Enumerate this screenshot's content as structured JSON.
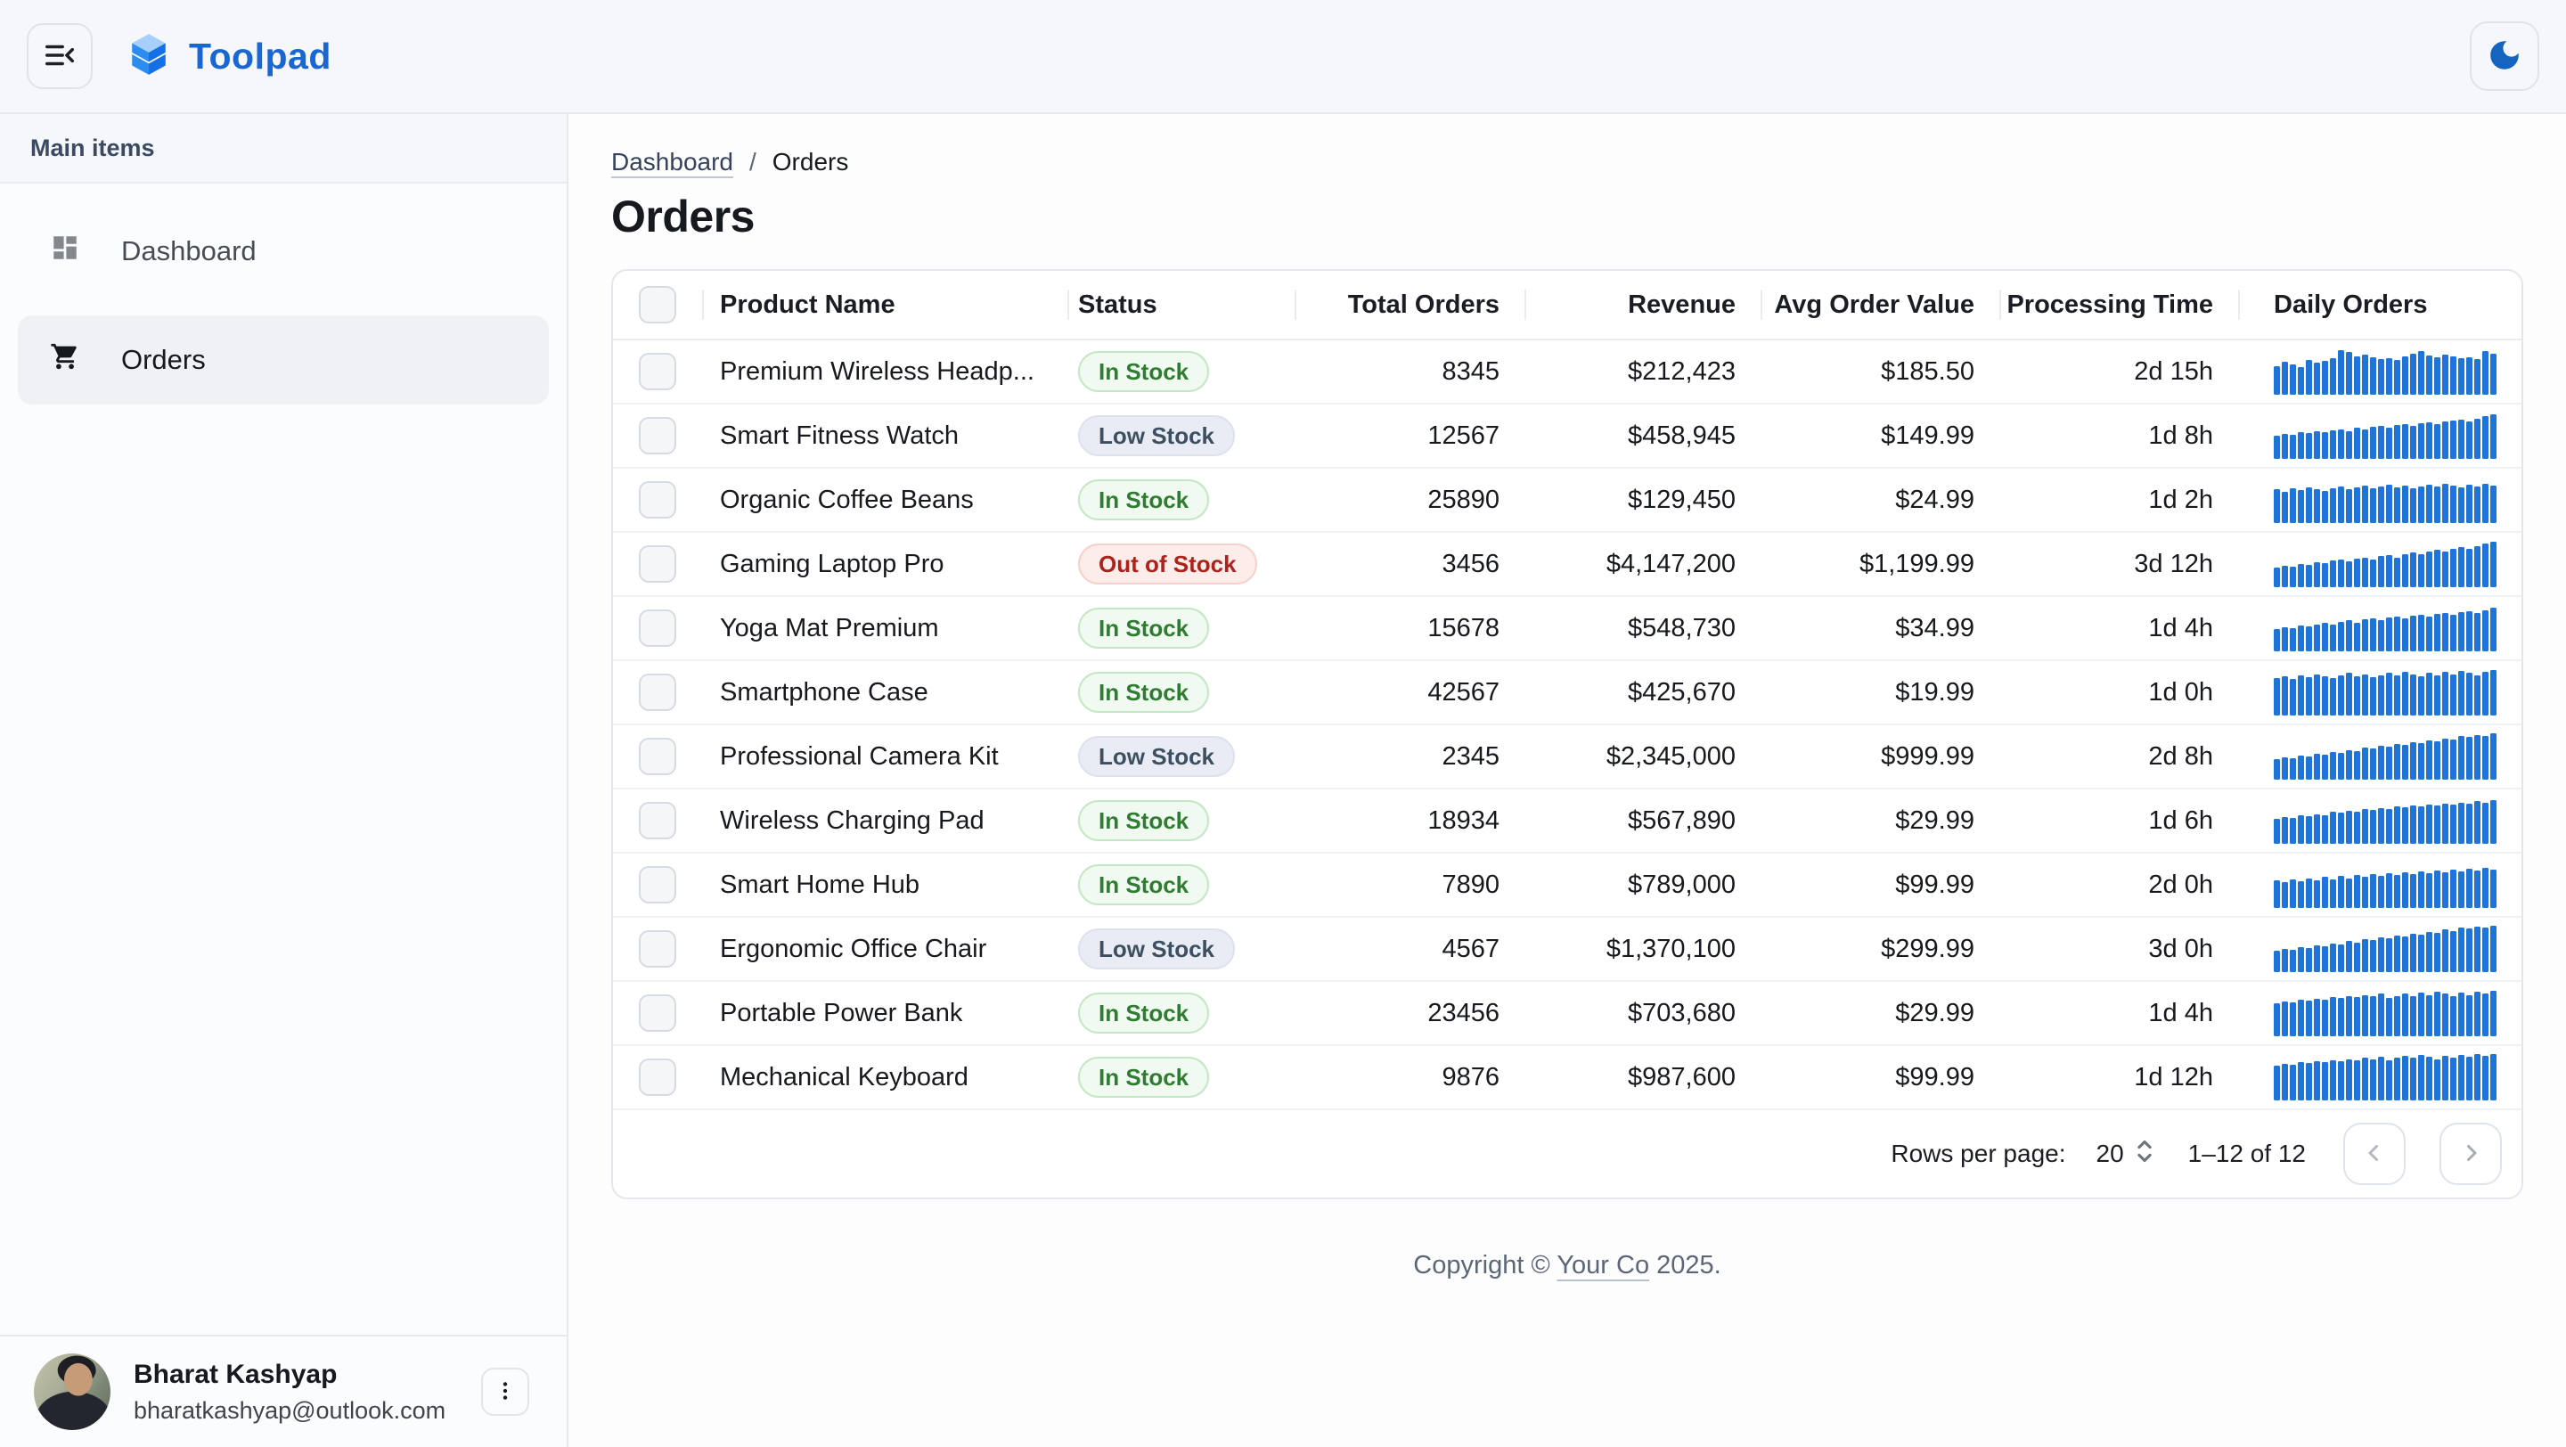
{
  "topbar": {
    "app_name": "Toolpad"
  },
  "sidebar": {
    "section_label": "Main items",
    "items": [
      {
        "label": "Dashboard",
        "icon": "dashboard-icon",
        "selected": false
      },
      {
        "label": "Orders",
        "icon": "cart-icon",
        "selected": true
      }
    ],
    "user": {
      "name": "Bharat Kashyap",
      "email": "bharatkashyap@outlook.com"
    }
  },
  "breadcrumb": {
    "link": "Dashboard",
    "separator": "/",
    "current": "Orders"
  },
  "page": {
    "title": "Orders"
  },
  "table": {
    "columns": [
      {
        "label": "",
        "name": "select-all"
      },
      {
        "label": "Product Name",
        "align": "left"
      },
      {
        "label": "Status",
        "align": "left"
      },
      {
        "label": "Total Orders",
        "align": "right"
      },
      {
        "label": "Revenue",
        "align": "right"
      },
      {
        "label": "Avg Order Value",
        "align": "right"
      },
      {
        "label": "Processing Time",
        "align": "right"
      },
      {
        "label": "Daily Orders",
        "align": "left"
      }
    ],
    "rows": [
      {
        "product": "Premium Wireless Headp...",
        "status": "In Stock",
        "status_variant": "success",
        "total_orders": "8345",
        "revenue": "$212,423",
        "avg_order_value": "$185.50",
        "processing_time": "2d 15h",
        "daily_orders": [
          60,
          68,
          63,
          58,
          72,
          66,
          70,
          75,
          92,
          88,
          80,
          84,
          78,
          74,
          76,
          72,
          80,
          85,
          90,
          82,
          78,
          84,
          80,
          76,
          78,
          74,
          90,
          86
        ]
      },
      {
        "product": "Smart Fitness Watch",
        "status": "Low Stock",
        "status_variant": "neutral",
        "total_orders": "12567",
        "revenue": "$458,945",
        "avg_order_value": "$149.99",
        "processing_time": "1d 8h",
        "daily_orders": [
          48,
          52,
          50,
          55,
          53,
          58,
          56,
          60,
          62,
          58,
          64,
          62,
          66,
          68,
          65,
          70,
          72,
          68,
          74,
          76,
          72,
          78,
          80,
          82,
          78,
          84,
          88,
          92
        ]
      },
      {
        "product": "Organic Coffee Beans",
        "status": "In Stock",
        "status_variant": "success",
        "total_orders": "25890",
        "revenue": "$129,450",
        "avg_order_value": "$24.99",
        "processing_time": "1d 2h",
        "daily_orders": [
          70,
          65,
          72,
          68,
          74,
          70,
          66,
          72,
          76,
          70,
          74,
          78,
          72,
          76,
          80,
          74,
          78,
          72,
          76,
          80,
          76,
          82,
          78,
          74,
          80,
          76,
          82,
          78
        ]
      },
      {
        "product": "Gaming Laptop Pro",
        "status": "Out of Stock",
        "status_variant": "error",
        "total_orders": "3456",
        "revenue": "$4,147,200",
        "avg_order_value": "$1,199.99",
        "processing_time": "3d 12h",
        "daily_orders": [
          40,
          44,
          42,
          48,
          46,
          52,
          50,
          55,
          58,
          54,
          60,
          62,
          58,
          64,
          66,
          62,
          68,
          72,
          68,
          74,
          78,
          74,
          80,
          84,
          80,
          86,
          90,
          95
        ]
      },
      {
        "product": "Yoga Mat Premium",
        "status": "In Stock",
        "status_variant": "success",
        "total_orders": "15678",
        "revenue": "$548,730",
        "avg_order_value": "$34.99",
        "processing_time": "1d 4h",
        "daily_orders": [
          46,
          50,
          48,
          54,
          52,
          56,
          60,
          56,
          62,
          64,
          60,
          66,
          68,
          64,
          70,
          72,
          68,
          74,
          76,
          72,
          78,
          80,
          76,
          82,
          84,
          80,
          86,
          90
        ]
      },
      {
        "product": "Smartphone Case",
        "status": "In Stock",
        "status_variant": "success",
        "total_orders": "42567",
        "revenue": "$425,670",
        "avg_order_value": "$19.99",
        "processing_time": "1d 0h",
        "daily_orders": [
          78,
          82,
          76,
          84,
          80,
          86,
          82,
          78,
          84,
          88,
          82,
          86,
          80,
          84,
          88,
          84,
          90,
          86,
          82,
          88,
          84,
          90,
          86,
          92,
          88,
          84,
          90,
          94
        ]
      },
      {
        "product": "Professional Camera Kit",
        "status": "Low Stock",
        "status_variant": "neutral",
        "total_orders": "2345",
        "revenue": "$2,345,000",
        "avg_order_value": "$999.99",
        "processing_time": "2d 8h",
        "daily_orders": [
          42,
          46,
          44,
          50,
          48,
          54,
          52,
          58,
          56,
          62,
          60,
          66,
          64,
          70,
          68,
          74,
          72,
          78,
          76,
          82,
          80,
          86,
          84,
          90,
          88,
          92,
          90,
          96
        ]
      },
      {
        "product": "Wireless Charging Pad",
        "status": "In Stock",
        "status_variant": "success",
        "total_orders": "18934",
        "revenue": "$567,890",
        "avg_order_value": "$29.99",
        "processing_time": "1d 6h",
        "daily_orders": [
          52,
          56,
          54,
          60,
          58,
          62,
          60,
          66,
          64,
          68,
          66,
          72,
          70,
          74,
          72,
          78,
          76,
          80,
          78,
          82,
          80,
          84,
          82,
          86,
          84,
          88,
          86,
          90
        ]
      },
      {
        "product": "Smart Home Hub",
        "status": "In Stock",
        "status_variant": "success",
        "total_orders": "7890",
        "revenue": "$789,000",
        "avg_order_value": "$99.99",
        "processing_time": "2d 0h",
        "daily_orders": [
          58,
          54,
          60,
          56,
          62,
          58,
          64,
          60,
          66,
          62,
          68,
          64,
          70,
          66,
          72,
          68,
          74,
          70,
          76,
          72,
          78,
          74,
          80,
          76,
          82,
          78,
          84,
          80
        ]
      },
      {
        "product": "Ergonomic Office Chair",
        "status": "Low Stock",
        "status_variant": "neutral",
        "total_orders": "4567",
        "revenue": "$1,370,100",
        "avg_order_value": "$299.99",
        "processing_time": "3d 0h",
        "daily_orders": [
          44,
          48,
          46,
          52,
          50,
          56,
          54,
          60,
          58,
          64,
          62,
          68,
          66,
          72,
          70,
          76,
          74,
          80,
          78,
          84,
          82,
          88,
          86,
          92,
          90,
          94,
          92,
          96
        ]
      },
      {
        "product": "Portable Power Bank",
        "status": "In Stock",
        "status_variant": "success",
        "total_orders": "23456",
        "revenue": "$703,680",
        "avg_order_value": "$29.99",
        "processing_time": "1d 4h",
        "daily_orders": [
          68,
          72,
          70,
          76,
          74,
          78,
          76,
          82,
          80,
          84,
          82,
          86,
          84,
          88,
          80,
          84,
          88,
          84,
          90,
          86,
          92,
          88,
          84,
          90,
          86,
          92,
          88,
          94
        ]
      },
      {
        "product": "Mechanical Keyboard",
        "status": "In Stock",
        "status_variant": "success",
        "total_orders": "9876",
        "revenue": "$987,600",
        "avg_order_value": "$99.99",
        "processing_time": "1d 12h",
        "daily_orders": [
          72,
          76,
          74,
          80,
          78,
          82,
          80,
          84,
          82,
          86,
          84,
          88,
          86,
          90,
          84,
          88,
          92,
          88,
          94,
          90,
          86,
          92,
          88,
          94,
          90,
          96,
          92,
          96
        ]
      }
    ],
    "pagination": {
      "rows_per_page_label": "Rows per page:",
      "rows_per_page": "20",
      "range": "1–12 of 12"
    }
  },
  "footer": {
    "prefix": "Copyright © ",
    "link": "Your Co",
    "suffix": " 2025."
  },
  "colors": {
    "accent": "#1967D2",
    "spark_bar": "#1E74D8",
    "success": "#2E7D32",
    "neutral": "#3E5060",
    "error": "#AB231B",
    "topbar_bg": "#F5F7FA",
    "selected_item_bg": "#F0F1F4"
  }
}
